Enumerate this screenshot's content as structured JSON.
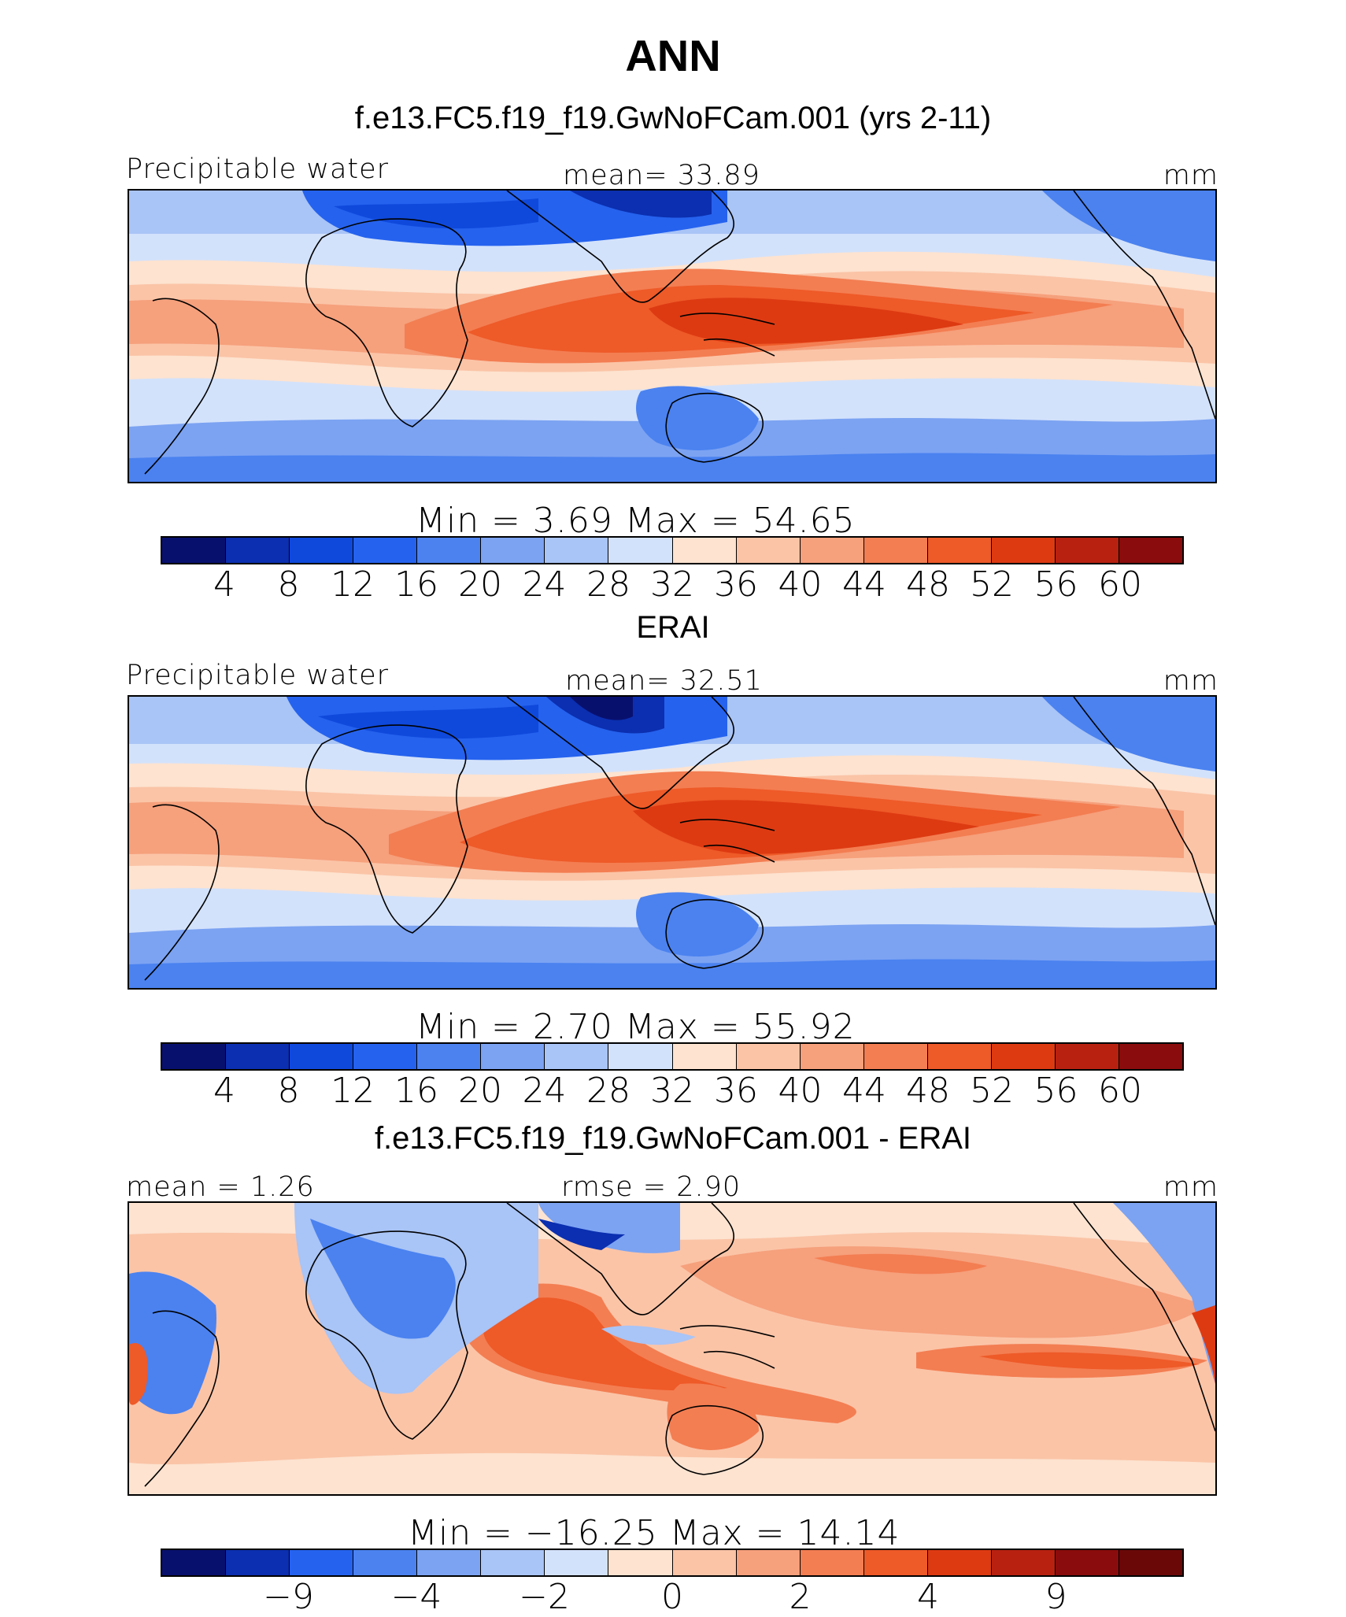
{
  "title": "ANN",
  "palette": [
    "#08106e",
    "#0b2fb0",
    "#0f49dc",
    "#2562ee",
    "#4b82f0",
    "#7ca3f2",
    "#a9c4f6",
    "#d3e2fb",
    "#fde3d0",
    "#fbc4a7",
    "#f6a07c",
    "#f37e52",
    "#ee5a28",
    "#dd3a12",
    "#b82110",
    "#8a0c0c"
  ],
  "units_label": "mm",
  "panels": [
    {
      "heading": "f.e13.FC5.f19_f19.GwNoFCam.001 (yrs 2-11)",
      "left_label": "Precipitable water",
      "center_label": "mean=   33.89",
      "right_label": "mm",
      "minmax": "Min  =     3.69  Max  =    54.65",
      "ticks": [
        "4",
        "8",
        "12",
        "16",
        "20",
        "24",
        "28",
        "32",
        "36",
        "40",
        "44",
        "48",
        "52",
        "56",
        "60"
      ]
    },
    {
      "heading": "ERAI",
      "left_label": "Precipitable water",
      "center_label": "mean=   32.51",
      "right_label": "mm",
      "minmax": "Min  =     2.70  Max  =    55.92",
      "ticks": [
        "4",
        "8",
        "12",
        "16",
        "20",
        "24",
        "28",
        "32",
        "36",
        "40",
        "44",
        "48",
        "52",
        "56",
        "60"
      ]
    },
    {
      "heading": "f.e13.FC5.f19_f19.GwNoFCam.001 - ERAI",
      "left_label": "mean =    1.26",
      "center_label": "rmse =    2.90",
      "right_label": "mm",
      "minmax": "Min  = −16.25  Max  =    14.14",
      "ticks": [
        "−9",
        "−4",
        "−2",
        "0",
        "2",
        "4",
        "9"
      ]
    }
  ]
}
